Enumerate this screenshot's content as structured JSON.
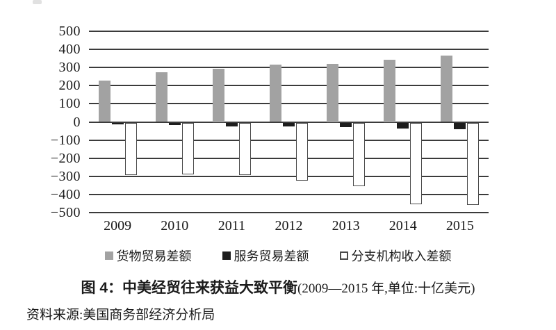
{
  "figure": {
    "title_main": "图 4：中美经贸往来获益大致平衡",
    "title_paren": "(2009—2015 年,单位:十亿美元)",
    "source_note": "资料来源:美国商务部经济分析局"
  },
  "chart_data": {
    "type": "bar",
    "title": "图 4：中美经贸往来获益大致平衡(2009—2015 年,单位:十亿美元)",
    "unit": "十亿美元",
    "categories": [
      "2009",
      "2010",
      "2011",
      "2012",
      "2013",
      "2014",
      "2015"
    ],
    "series": [
      {
        "key": "goods",
        "name": "货物贸易差额",
        "color": "#a2a2a2",
        "values": [
          227,
          273,
          295,
          315,
          320,
          345,
          367
        ]
      },
      {
        "key": "services",
        "name": "服务贸易差额",
        "color": "#1d1d1d",
        "values": [
          -10,
          -15,
          -20,
          -20,
          -25,
          -33,
          -38
        ]
      },
      {
        "key": "branch-income",
        "name": "分支机构收入差额",
        "color": "#ffffff",
        "border_color": "#4a4a4a",
        "values": [
          -290,
          -285,
          -290,
          -320,
          -350,
          -450,
          -455
        ]
      }
    ],
    "ylim": [
      -500,
      500
    ],
    "yticks": [
      500,
      400,
      300,
      200,
      100,
      0,
      -100,
      -200,
      -300,
      -400,
      -500
    ],
    "ytick_labels": [
      "500",
      "400",
      "300",
      "200",
      "100",
      "0",
      "−100",
      "−200",
      "−300",
      "−400",
      "−500"
    ],
    "xlabel": "",
    "ylabel": "",
    "grid": true,
    "legend_position": "bottom",
    "gridline_color": "#3b3b3b"
  }
}
